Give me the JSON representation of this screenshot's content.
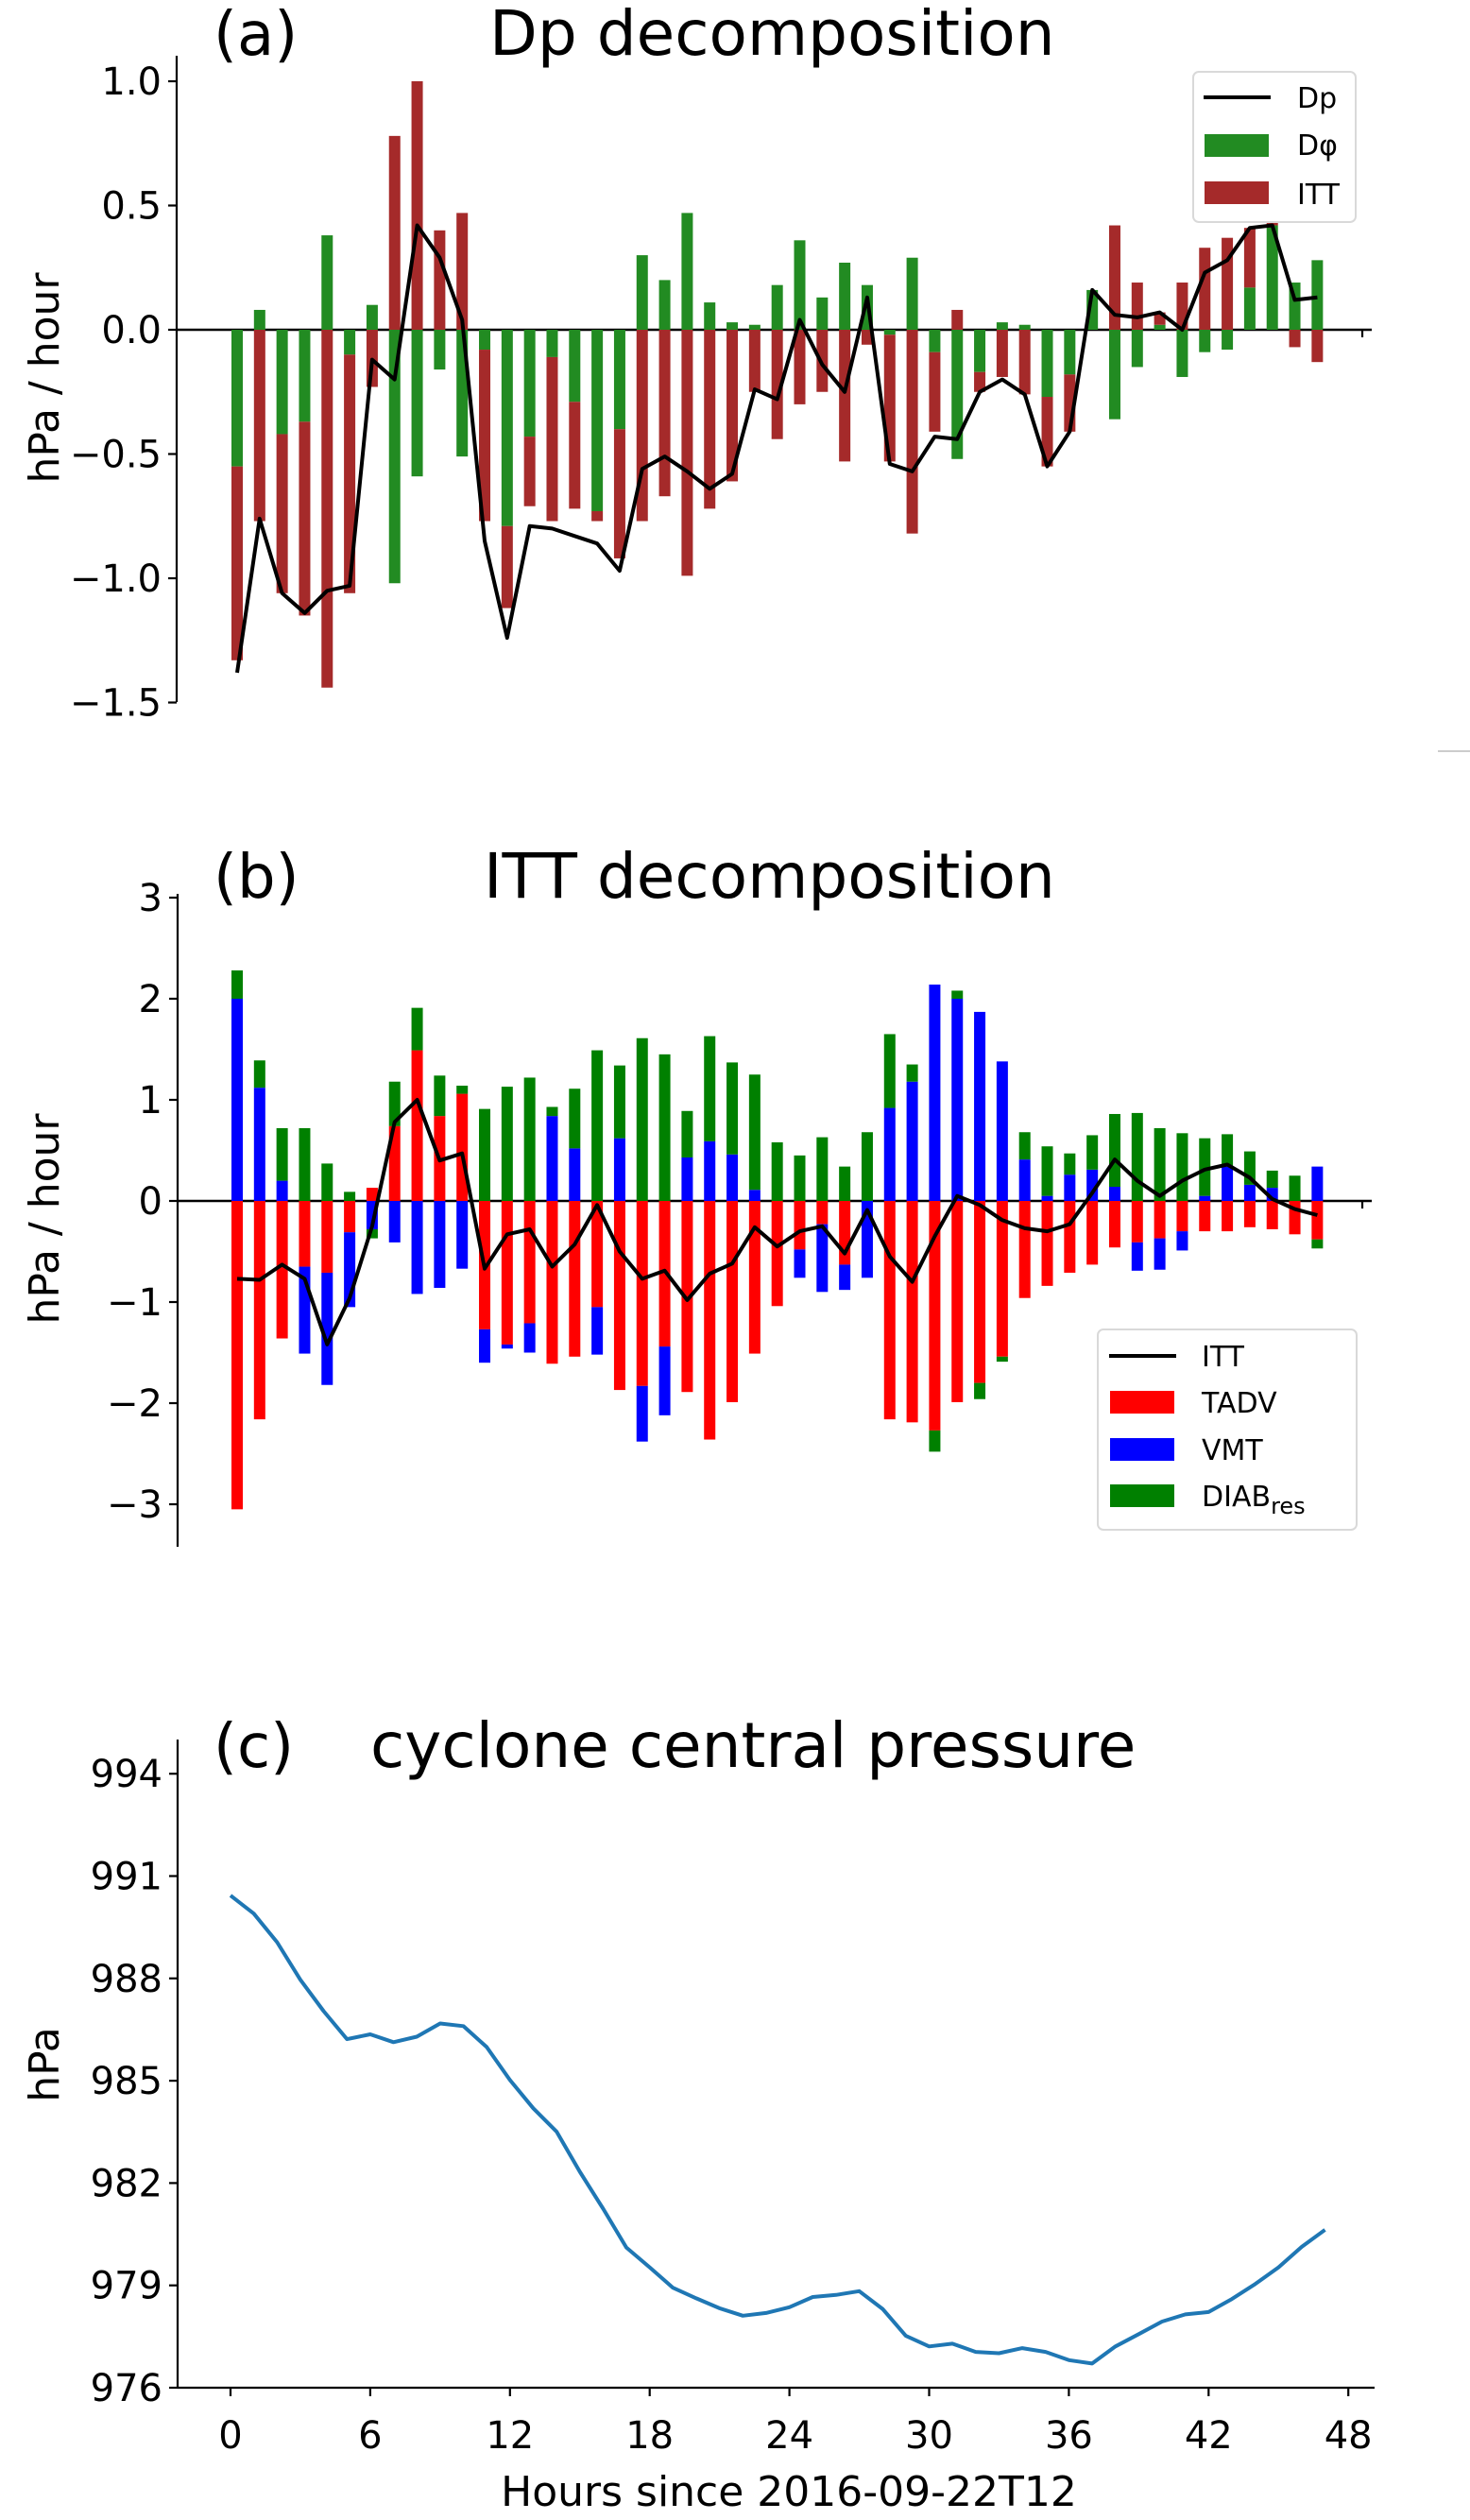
{
  "figure": {
    "background": "#ffffff"
  },
  "chart_data": [
    {
      "id": "a",
      "type": "bar",
      "stacked": true,
      "panel_label": "(a)",
      "title": "Dp decomposition",
      "xlabel": "",
      "ylabel": "hPa / hour",
      "x": [
        0,
        1,
        2,
        3,
        4,
        5,
        6,
        7,
        8,
        9,
        10,
        11,
        12,
        13,
        14,
        15,
        16,
        17,
        18,
        19,
        20,
        21,
        22,
        23,
        24,
        25,
        26,
        27,
        28,
        29,
        30,
        31,
        32,
        33,
        34,
        35,
        36,
        37,
        38,
        39,
        40,
        41,
        42,
        43,
        44,
        45,
        46,
        47,
        48
      ],
      "xlim": [
        0,
        50
      ],
      "xticks": [
        0,
        10,
        20,
        30,
        40,
        50
      ],
      "xtick_labels_visible": false,
      "ylim": [
        -1.5,
        1.0
      ],
      "yticks": [
        -1.5,
        -1.0,
        -0.5,
        0.0,
        0.5,
        1.0
      ],
      "ytick_labels": [
        "−1.5",
        "−1.0",
        "−0.5",
        "0.0",
        "0.5",
        "1.0"
      ],
      "zero_line": true,
      "legend": {
        "position": "top-right",
        "entries": [
          "Dp",
          "Dφ",
          "ITT"
        ]
      },
      "series": [
        {
          "name": "Dφ",
          "kind": "bar",
          "color": "#228b22",
          "values": [
            -0.55,
            0.08,
            -0.42,
            -0.37,
            0.38,
            -0.1,
            0.1,
            -1.02,
            -0.59,
            -0.16,
            -0.51,
            -0.08,
            -0.79,
            -0.43,
            -0.11,
            -0.29,
            -0.73,
            -0.4,
            0.3,
            0.2,
            0.47,
            0.11,
            0.03,
            0.02,
            0.18,
            0.36,
            0.13,
            0.27,
            0.18,
            -0.02,
            0.29,
            -0.09,
            -0.52,
            -0.17,
            0.03,
            0.02,
            -0.27,
            -0.18,
            0.16,
            -0.36,
            -0.15,
            0.02,
            -0.19,
            -0.09,
            -0.08,
            0.17,
            0.42,
            0.19,
            0.28
          ]
        },
        {
          "name": "ITT",
          "kind": "bar",
          "color": "#a52a2a",
          "values": [
            -0.78,
            -0.77,
            -0.64,
            -0.78,
            -1.44,
            -0.96,
            -0.23,
            0.78,
            1.0,
            0.4,
            0.47,
            -0.69,
            -0.33,
            -0.28,
            -0.66,
            -0.43,
            -0.04,
            -0.52,
            -0.77,
            -0.67,
            -0.99,
            -0.72,
            -0.61,
            -0.25,
            -0.44,
            -0.3,
            -0.25,
            -0.53,
            -0.06,
            -0.51,
            -0.82,
            -0.32,
            0.08,
            -0.08,
            -0.19,
            -0.26,
            -0.28,
            -0.23,
            0.0,
            0.42,
            0.19,
            0.05,
            0.19,
            0.33,
            0.37,
            0.24,
            0.01,
            -0.07,
            -0.13
          ]
        },
        {
          "name": "Dp",
          "kind": "line",
          "color": "#000000",
          "values": [
            -1.38,
            -0.76,
            -1.06,
            -1.14,
            -1.05,
            -1.03,
            -0.12,
            -0.2,
            0.42,
            0.29,
            0.04,
            -0.85,
            -1.24,
            -0.79,
            -0.8,
            -0.83,
            -0.86,
            -0.97,
            -0.56,
            -0.51,
            -0.57,
            -0.64,
            -0.58,
            -0.24,
            -0.28,
            0.04,
            -0.14,
            -0.25,
            0.13,
            -0.54,
            -0.57,
            -0.43,
            -0.44,
            -0.25,
            -0.2,
            -0.26,
            -0.55,
            -0.41,
            0.16,
            0.06,
            0.05,
            0.07,
            0.0,
            0.23,
            0.28,
            0.41,
            0.42,
            0.12,
            0.13
          ]
        }
      ]
    },
    {
      "id": "b",
      "type": "bar",
      "stacked": true,
      "panel_label": "(b)",
      "title": "ITT decomposition",
      "xlabel": "",
      "ylabel": "hPa / hour",
      "x": [
        0,
        1,
        2,
        3,
        4,
        5,
        6,
        7,
        8,
        9,
        10,
        11,
        12,
        13,
        14,
        15,
        16,
        17,
        18,
        19,
        20,
        21,
        22,
        23,
        24,
        25,
        26,
        27,
        28,
        29,
        30,
        31,
        32,
        33,
        34,
        35,
        36,
        37,
        38,
        39,
        40,
        41,
        42,
        43,
        44,
        45,
        46,
        47,
        48
      ],
      "xlim": [
        0,
        50
      ],
      "xticks": [
        0,
        10,
        20,
        30,
        40,
        50
      ],
      "xtick_labels_visible": false,
      "ylim": [
        -3,
        3
      ],
      "yticks": [
        -3,
        -2,
        -1,
        0,
        1,
        2,
        3
      ],
      "ytick_labels": [
        "−3",
        "−2",
        "−1",
        "0",
        "1",
        "2",
        "3"
      ],
      "zero_line": true,
      "legend": {
        "position": "lower-right",
        "entries": [
          "ITT",
          "TADV",
          "VMT",
          "DIAB",
          "res"
        ]
      },
      "series": [
        {
          "name": "TADV",
          "kind": "bar",
          "color": "#ff0000",
          "values": [
            -3.05,
            -2.16,
            -1.36,
            -0.65,
            -0.71,
            -0.31,
            0.13,
            0.74,
            1.49,
            0.84,
            1.06,
            -1.27,
            -1.42,
            -1.21,
            -1.61,
            -1.54,
            -1.05,
            -1.87,
            -1.83,
            -1.44,
            -1.89,
            -2.36,
            -1.99,
            -1.51,
            -1.04,
            -0.48,
            -0.23,
            -0.63,
            0.0,
            -2.16,
            -2.19,
            -2.27,
            -1.99,
            -1.8,
            -1.54,
            -0.96,
            -0.84,
            -0.71,
            -0.63,
            -0.46,
            -0.41,
            -0.37,
            -0.3,
            -0.3,
            -0.3,
            -0.26,
            -0.28,
            -0.33,
            -0.38
          ]
        },
        {
          "name": "VMT",
          "kind": "bar",
          "color": "#0000ff",
          "values": [
            2.0,
            1.12,
            0.2,
            -0.86,
            -1.11,
            -0.74,
            -0.28,
            -0.41,
            -0.92,
            -0.86,
            -0.67,
            -0.33,
            -0.04,
            -0.29,
            0.84,
            0.52,
            -0.47,
            0.62,
            -0.55,
            -0.68,
            0.43,
            0.59,
            0.46,
            0.11,
            0.0,
            -0.28,
            -0.67,
            -0.25,
            -0.76,
            0.92,
            1.18,
            2.14,
            2.0,
            1.87,
            1.38,
            0.41,
            0.05,
            0.26,
            0.31,
            0.14,
            -0.28,
            -0.31,
            -0.19,
            0.05,
            0.34,
            0.16,
            0.13,
            0.0,
            0.34
          ]
        },
        {
          "name": "DIAB_res",
          "kind": "bar",
          "color": "#008000",
          "values": [
            0.28,
            0.27,
            0.52,
            0.72,
            0.37,
            0.09,
            -0.09,
            0.44,
            0.42,
            0.4,
            0.08,
            0.91,
            1.13,
            1.22,
            0.09,
            0.59,
            1.49,
            0.72,
            1.61,
            1.45,
            0.46,
            1.04,
            0.91,
            1.14,
            0.58,
            0.45,
            0.63,
            0.34,
            0.68,
            0.73,
            0.17,
            -0.21,
            0.08,
            -0.16,
            -0.05,
            0.27,
            0.49,
            0.21,
            0.34,
            0.72,
            0.87,
            0.72,
            0.67,
            0.57,
            0.32,
            0.33,
            0.17,
            0.25,
            -0.09
          ]
        },
        {
          "name": "ITT",
          "kind": "line",
          "color": "#000000",
          "values": [
            -0.77,
            -0.78,
            -0.63,
            -0.77,
            -1.42,
            -0.96,
            -0.25,
            0.78,
            1.0,
            0.4,
            0.47,
            -0.67,
            -0.33,
            -0.28,
            -0.65,
            -0.43,
            -0.04,
            -0.5,
            -0.77,
            -0.69,
            -0.98,
            -0.72,
            -0.62,
            -0.26,
            -0.45,
            -0.3,
            -0.25,
            -0.52,
            -0.09,
            -0.55,
            -0.8,
            -0.35,
            0.05,
            -0.04,
            -0.19,
            -0.27,
            -0.3,
            -0.23,
            0.08,
            0.41,
            0.2,
            0.05,
            0.2,
            0.31,
            0.36,
            0.23,
            0.02,
            -0.08,
            -0.14
          ]
        }
      ]
    },
    {
      "id": "c",
      "type": "line",
      "panel_label": "(c)",
      "title": "cyclone central pressure",
      "xlabel": "Hours since 2016-09-22T12",
      "ylabel": "hPa",
      "xlim": [
        -2,
        50
      ],
      "xticks": [
        0,
        6,
        12,
        18,
        24,
        30,
        36,
        42,
        48
      ],
      "xtick_labels": [
        "0",
        "6",
        "12",
        "18",
        "24",
        "30",
        "36",
        "42",
        "48"
      ],
      "ylim": [
        976,
        995
      ],
      "yticks": [
        976,
        979,
        982,
        985,
        988,
        991,
        994
      ],
      "ytick_labels": [
        "976",
        "979",
        "982",
        "985",
        "988",
        "991",
        "994"
      ],
      "series": [
        {
          "name": "central pressure",
          "kind": "line",
          "color": "#1f77b4",
          "x": [
            0,
            1,
            2,
            3,
            4,
            5,
            6,
            7,
            8,
            9,
            10,
            11,
            12,
            13,
            14,
            15,
            16,
            17,
            18,
            19,
            20,
            21,
            22,
            23,
            24,
            25,
            26,
            27,
            28,
            29,
            30,
            31,
            32,
            33,
            34,
            35,
            36,
            37,
            38,
            39,
            40,
            41,
            42,
            43,
            44,
            45,
            46,
            47
          ],
          "values": [
            990.43,
            989.9,
            989.06,
            987.96,
            987.04,
            986.22,
            986.36,
            986.13,
            986.29,
            986.68,
            986.6,
            985.99,
            985.02,
            984.19,
            983.51,
            982.33,
            981.25,
            980.11,
            979.53,
            978.93,
            978.62,
            978.33,
            978.11,
            978.19,
            978.36,
            978.66,
            978.72,
            978.83,
            978.31,
            977.52,
            977.21,
            977.29,
            977.05,
            977.01,
            977.16,
            977.05,
            976.81,
            976.71,
            977.21,
            977.57,
            977.94,
            978.15,
            978.22,
            978.6,
            979.04,
            979.53,
            980.13,
            980.63
          ]
        }
      ]
    }
  ]
}
